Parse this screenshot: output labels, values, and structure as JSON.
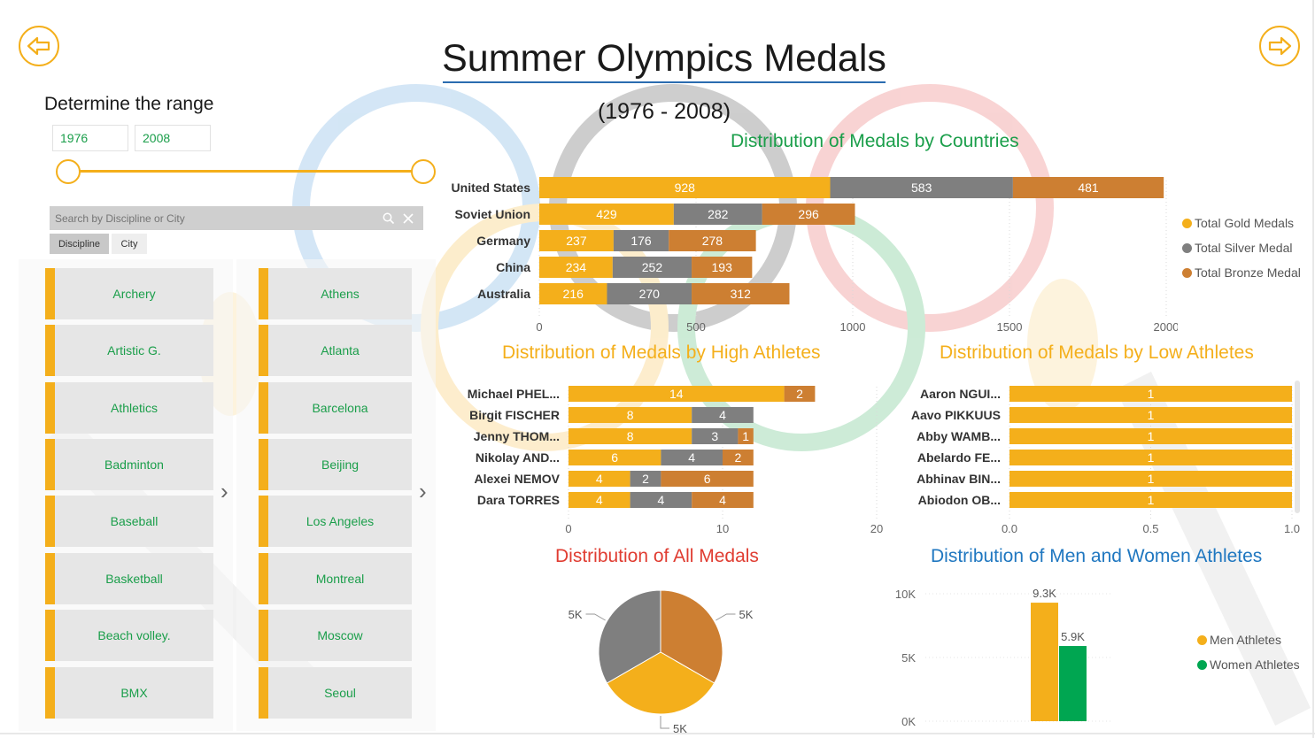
{
  "header": {
    "title": "Summer Olympics Medals",
    "subtitle": "(1976 - 2008)"
  },
  "nav": {
    "back_icon": "arrow-left-icon",
    "forward_icon": "arrow-right-icon"
  },
  "range_filter": {
    "label": "Determine the range",
    "start": "1976",
    "end": "2008"
  },
  "search": {
    "placeholder": "Search by Discipline or City",
    "search_icon": "search-icon",
    "clear_icon": "close-icon"
  },
  "tabs": [
    "Discipline",
    "City"
  ],
  "disciplines": [
    "Archery",
    "Artistic G.",
    "Athletics",
    "Badminton",
    "Baseball",
    "Basketball",
    "Beach volley.",
    "BMX"
  ],
  "cities": [
    "Athens",
    "Atlanta",
    "Barcelona",
    "Beijing",
    "Los Angeles",
    "Montreal",
    "Moscow",
    "Seoul"
  ],
  "colors": {
    "gold": "#F4AF1B",
    "silver": "#7F7F7F",
    "bronze": "#CD7F32",
    "men": "#F4AF1B",
    "women": "#00A651",
    "title_green": "#1a9e4a",
    "title_orange": "#F4AF1B",
    "title_red": "#E03C31",
    "title_blue": "#1f77c0"
  },
  "chart_data": [
    {
      "type": "bar",
      "orientation": "horizontal",
      "stacked": true,
      "title": "Distribution of Medals by Countries",
      "categories": [
        "United States",
        "Soviet Union",
        "Germany",
        "China",
        "Australia"
      ],
      "series": [
        {
          "name": "Total Gold Medals",
          "values": [
            928,
            429,
            237,
            234,
            216
          ]
        },
        {
          "name": "Total Silver Medal",
          "values": [
            583,
            282,
            176,
            252,
            270
          ]
        },
        {
          "name": "Total Bronze Medal",
          "values": [
            481,
            296,
            278,
            193,
            312
          ]
        }
      ],
      "xlim": [
        0,
        2000
      ],
      "ticks": [
        "0",
        "500",
        "1000",
        "1500",
        "2000"
      ],
      "legend": "right"
    },
    {
      "type": "bar",
      "orientation": "horizontal",
      "stacked": true,
      "title": "Distribution of Medals by High Athletes",
      "categories": [
        "Michael PHEL...",
        "Birgit FISCHER",
        "Jenny THOM...",
        "Nikolay AND...",
        "Alexei NEMOV",
        "Dara TORRES"
      ],
      "series": [
        {
          "values": [
            14,
            8,
            8,
            6,
            4,
            4
          ]
        },
        {
          "values": [
            0,
            4,
            3,
            4,
            2,
            4
          ]
        },
        {
          "values": [
            2,
            0,
            1,
            2,
            6,
            4
          ]
        }
      ],
      "xlim": [
        0,
        20
      ],
      "ticks": [
        "0",
        "10",
        "20"
      ]
    },
    {
      "type": "bar",
      "orientation": "horizontal",
      "stacked": true,
      "title": "Distribution of Medals by Low Athletes",
      "categories": [
        "Aaron NGUI...",
        "Aavo PIKKUUS",
        "Abby WAMB...",
        "Abelardo FE...",
        "Abhinav BIN...",
        "Abiodon OB..."
      ],
      "series": [
        {
          "values": [
            1,
            1,
            1,
            1,
            1,
            1
          ]
        }
      ],
      "xlim": [
        0,
        1
      ],
      "ticks": [
        "0.0",
        "0.5",
        "1.0"
      ]
    },
    {
      "type": "pie",
      "title": "Distribution of All Medals",
      "values": [
        5,
        5,
        5
      ],
      "labels": [
        "5K",
        "5K",
        "5K"
      ]
    },
    {
      "type": "bar",
      "title": "Distribution of Men and Women Athletes",
      "series": [
        {
          "name": "Men Athletes",
          "values": [
            9.3
          ],
          "label": "9.3K"
        },
        {
          "name": "Women Athletes",
          "values": [
            5.9
          ],
          "label": "5.9K"
        }
      ],
      "ylim": [
        0,
        10
      ],
      "ticks": [
        "0K",
        "5K",
        "10K"
      ],
      "legend": "right"
    }
  ]
}
